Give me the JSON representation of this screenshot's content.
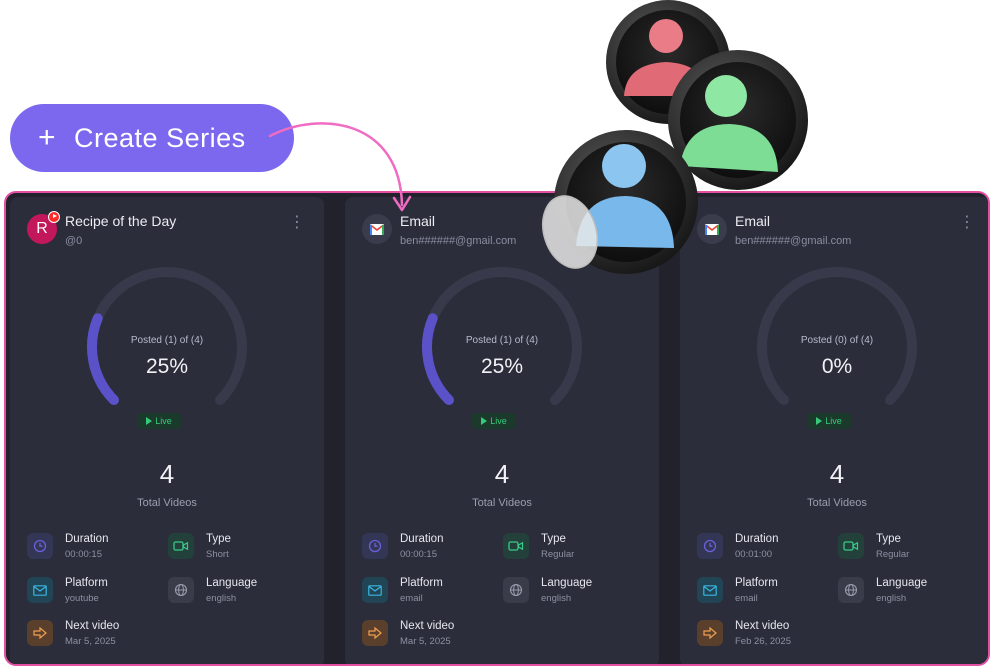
{
  "create_button": {
    "label": "Create Series"
  },
  "colors": {
    "accent": "#7b68ee",
    "panel_border": "#e34fa3",
    "live": "#37c97a",
    "gauge": "#5b52c9"
  },
  "cards": [
    {
      "title": "Recipe of the Day",
      "subtitle": "@0",
      "avatar_letter": "R",
      "platform_icon": "youtube-badge",
      "posted_text": "Posted (1) of (4)",
      "percent_text": "25%",
      "progress": 0.25,
      "status": "Live",
      "total_videos": "4",
      "total_label": "Total Videos",
      "duration_label": "Duration",
      "duration": "00:00:15",
      "type_label": "Type",
      "type": "Short",
      "platform_label": "Platform",
      "platform": "youtube",
      "language_label": "Language",
      "language": "english",
      "next_label": "Next video",
      "next": "Mar 5, 2025"
    },
    {
      "title": "Email",
      "subtitle": "ben######@gmail.com",
      "avatar_letter": "",
      "platform_icon": "gmail-icon",
      "posted_text": "Posted (1) of (4)",
      "percent_text": "25%",
      "progress": 0.25,
      "status": "Live",
      "total_videos": "4",
      "total_label": "Total Videos",
      "duration_label": "Duration",
      "duration": "00:00:15",
      "type_label": "Type",
      "type": "Regular",
      "platform_label": "Platform",
      "platform": "email",
      "language_label": "Language",
      "language": "english",
      "next_label": "Next video",
      "next": "Mar 5, 2025"
    },
    {
      "title": "Email",
      "subtitle": "ben######@gmail.com",
      "avatar_letter": "",
      "platform_icon": "gmail-icon",
      "posted_text": "Posted (0) of (4)",
      "percent_text": "0%",
      "progress": 0,
      "status": "Live",
      "total_videos": "4",
      "total_label": "Total Videos",
      "duration_label": "Duration",
      "duration": "00:01:00",
      "type_label": "Type",
      "type": "Regular",
      "platform_label": "Platform",
      "platform": "email",
      "language_label": "Language",
      "language": "english",
      "next_label": "Next video",
      "next": "Feb 26, 2025"
    }
  ]
}
